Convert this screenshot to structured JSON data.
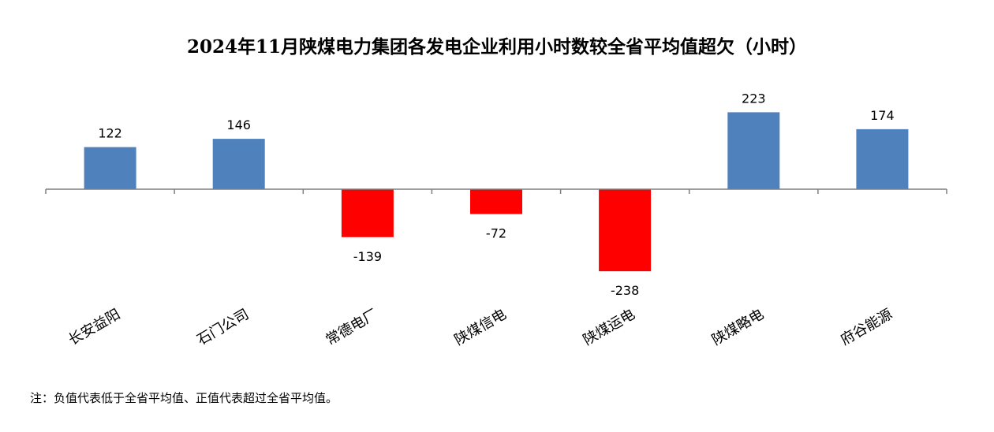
{
  "chart_data": {
    "type": "bar",
    "title": "2024年11月陕煤电力集团各发电企业利用小时数较全省平均值超欠（小时）",
    "categories": [
      "长安益阳",
      "石门公司",
      "常德电厂",
      "陕煤信电",
      "陕煤运电",
      "陕煤略电",
      "府谷能源"
    ],
    "values": [
      122,
      146,
      -139,
      -72,
      -238,
      223,
      174
    ],
    "xlabel": "",
    "ylabel": "",
    "ylim": [
      -300,
      250
    ],
    "grid": false,
    "legend": "none",
    "colors": {
      "positive": "#4f81bd",
      "negative": "#ff0000",
      "axis": "#7f7f7f"
    }
  },
  "footnote": "注：负值代表低于全省平均值、正值代表超过全省平均值。"
}
